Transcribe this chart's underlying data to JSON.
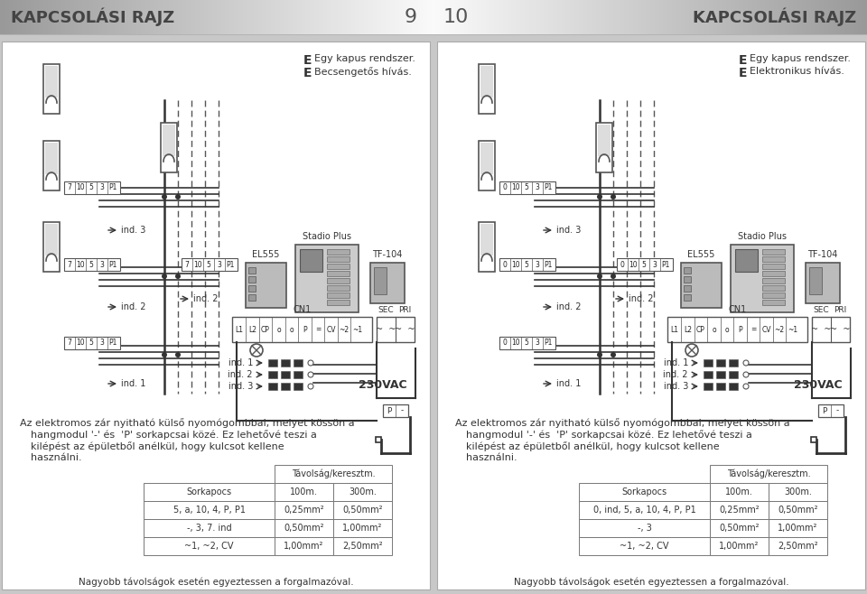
{
  "page_num_left": "9",
  "page_num_right": "10",
  "header_title": "KAPCSOLÁSI RAJZ",
  "left_sub1": "Egy kapus rendszer.",
  "left_sub2": "Becsengetős hívás.",
  "right_sub1": "Egy kapus rendszer.",
  "right_sub2": "Elektronikus hívás.",
  "desc_text_line1": "Az elektromos zár nyitható külső nyomógombbal, melyet kössön a",
  "desc_text_line2": "hangmodul '-' és  'P' sorkapcsai közé. Ez lehetővé teszi a",
  "desc_text_line3": "kilépést az épületből anélkül, hogy kulcsot kellene",
  "desc_text_line4": "használni.",
  "table_header": "Távolság/keresztm.",
  "col1": "Sorkapocs",
  "col2": "100m.",
  "col3": "300m.",
  "left_rows": [
    [
      "5, a, 10, 4, P, P1",
      "0,25mm²",
      "0,50mm²"
    ],
    [
      "-, 3, 7. ind",
      "0,50mm²",
      "1,00mm²"
    ],
    [
      "~1, ~2, CV",
      "1,00mm²",
      "2,50mm²"
    ]
  ],
  "right_rows": [
    [
      "0, ind, 5, a, 10, 4, P, P1",
      "0,25mm²",
      "0,50mm²"
    ],
    [
      "-, 3",
      "0,50mm²",
      "1,00mm²"
    ],
    [
      "~1, ~2, CV",
      "1,00mm²",
      "2,50mm²"
    ]
  ],
  "footer": "Nagyobb távolságok esetén egyeztessen a forgalmazóval.",
  "left_nums": [
    "7",
    "10",
    "5",
    "3",
    "P1"
  ],
  "right_nums": [
    "0",
    "10",
    "5",
    "3",
    "P1"
  ]
}
